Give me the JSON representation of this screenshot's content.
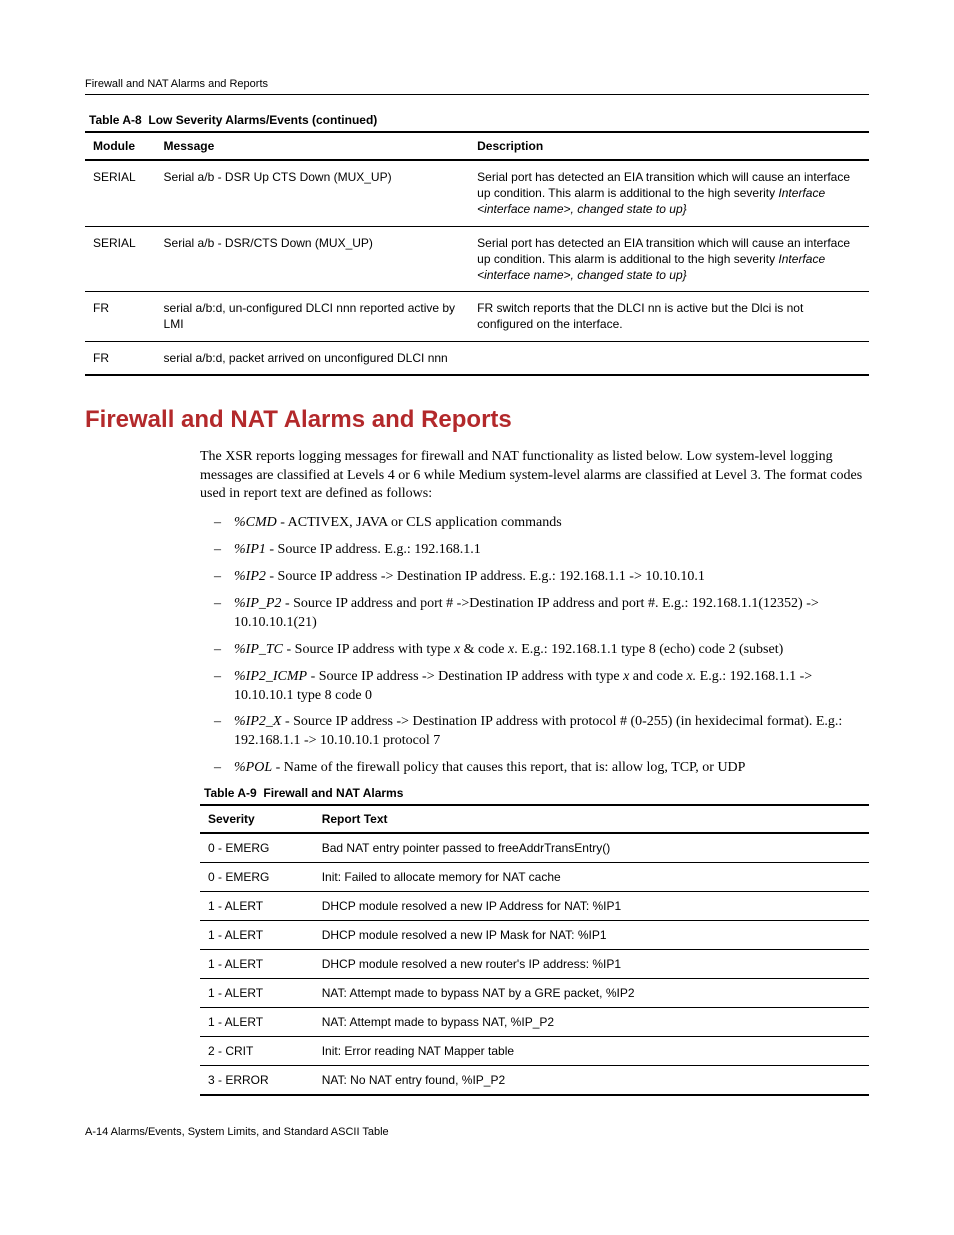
{
  "running_header": "Firewall and NAT Alarms and Reports",
  "table_a8": {
    "caption_prefix": "Table A-8",
    "caption_title": "Low Severity Alarms/Events (continued)",
    "headers": {
      "module": "Module",
      "message": "Message",
      "description": "Description"
    },
    "col_widths": {
      "module": "9%",
      "message": "40%",
      "description": "51%"
    },
    "rows": [
      {
        "module": "SERIAL",
        "message": "Serial a/b - DSR Up CTS Down (MUX_UP)",
        "description_plain": "Serial port has detected an EIA transition which will cause an interface up condition. This alarm is additional to the high severity ",
        "description_italic": "Interface <interface name>, changed state to up}"
      },
      {
        "module": "SERIAL",
        "message": "Serial a/b - DSR/CTS Down (MUX_UP)",
        "description_plain": "Serial port has detected an EIA transition which will cause an interface up condition. This alarm is additional to the high severity ",
        "description_italic": "Interface <interface name>, changed state to up}"
      },
      {
        "module": "FR",
        "message": "serial a/b:d, un-configured DLCI nnn reported active by LMI",
        "description_plain": "FR switch reports that the DLCI nn is active but the Dlci is not configured on the interface.",
        "description_italic": ""
      },
      {
        "module": "FR",
        "message": "serial a/b:d, packet arrived on unconfigured DLCI nnn",
        "description_plain": "",
        "description_italic": ""
      }
    ]
  },
  "section_title": "Firewall and NAT Alarms and Reports",
  "intro_paragraph": "The XSR reports logging messages for firewall and NAT functionality as listed below. Low system-level logging messages are classified at Levels 4 or 6 while Medium system-level alarms are classified at Level 3. The format codes used in report text are defined as follows:",
  "format_codes": [
    {
      "code": "%CMD",
      "text": " - ACTIVEX, JAVA or CLS application commands"
    },
    {
      "code": "%IP1",
      "text": " - Source IP address. E.g.: 192.168.1.1"
    },
    {
      "code": "%IP2",
      "text": " - Source IP address -> Destination IP address. E.g.: 192.168.1.1 -> 10.10.10.1"
    },
    {
      "code": "%IP_P2",
      "text": " - Source IP address and port # ->Destination IP address and port #. E.g.: 192.168.1.1(12352) -> 10.10.10.1(21)"
    },
    {
      "code": "%IP_TC",
      "text_before": " - Source IP address with type ",
      "var1": "x",
      "mid1": " & code ",
      "var2": "x",
      "text_after": ". E.g.: 192.168.1.1 type 8 (echo) code 2 (subset)"
    },
    {
      "code": "%IP2_ICMP",
      "text_before": " - Source IP address -> Destination IP address with type ",
      "var1": "x",
      "mid1": " and code ",
      "var2": "x.",
      "text_after": " E.g.: 192.168.1.1 -> 10.10.10.1 type 8 code 0"
    },
    {
      "code": "%IP2_X",
      "text": " - Source IP address -> Destination IP address with protocol # (0-255) (in hexidecimal format). E.g.: 192.168.1.1 -> 10.10.10.1 protocol 7"
    },
    {
      "code": "%POL",
      "text": " - Name of the firewall policy that causes this report, that is: allow log, TCP, or UDP"
    }
  ],
  "table_a9": {
    "caption_prefix": "Table A-9",
    "caption_title": "Firewall and NAT Alarms",
    "headers": {
      "severity": "Severity",
      "report": "Report Text"
    },
    "col_widths": {
      "severity": "17%",
      "report": "83%"
    },
    "rows": [
      {
        "severity": "0 - EMERG",
        "report": "Bad NAT entry pointer passed to freeAddrTransEntry()"
      },
      {
        "severity": "0 - EMERG",
        "report": "Init: Failed to allocate memory for NAT cache"
      },
      {
        "severity": "1 - ALERT",
        "report": "DHCP module resolved a new IP Address for NAT: %IP1"
      },
      {
        "severity": "1 - ALERT",
        "report": "DHCP module resolved a new IP Mask for NAT: %IP1"
      },
      {
        "severity": "1 - ALERT",
        "report": "DHCP module resolved a new router's IP address: %IP1"
      },
      {
        "severity": "1 - ALERT",
        "report": "NAT: Attempt made to bypass NAT by a GRE packet, %IP2"
      },
      {
        "severity": "1 - ALERT",
        "report": "NAT: Attempt made to bypass NAT, %IP_P2"
      },
      {
        "severity": "2 - CRIT",
        "report": "Init: Error reading NAT Mapper table"
      },
      {
        "severity": "3 - ERROR",
        "report": "NAT: No NAT entry found, %IP_P2"
      }
    ]
  },
  "footer": "A-14  Alarms/Events, System Limits, and Standard ASCII Table",
  "colors": {
    "heading": "#b3292b",
    "text": "#000000",
    "background": "#ffffff"
  }
}
